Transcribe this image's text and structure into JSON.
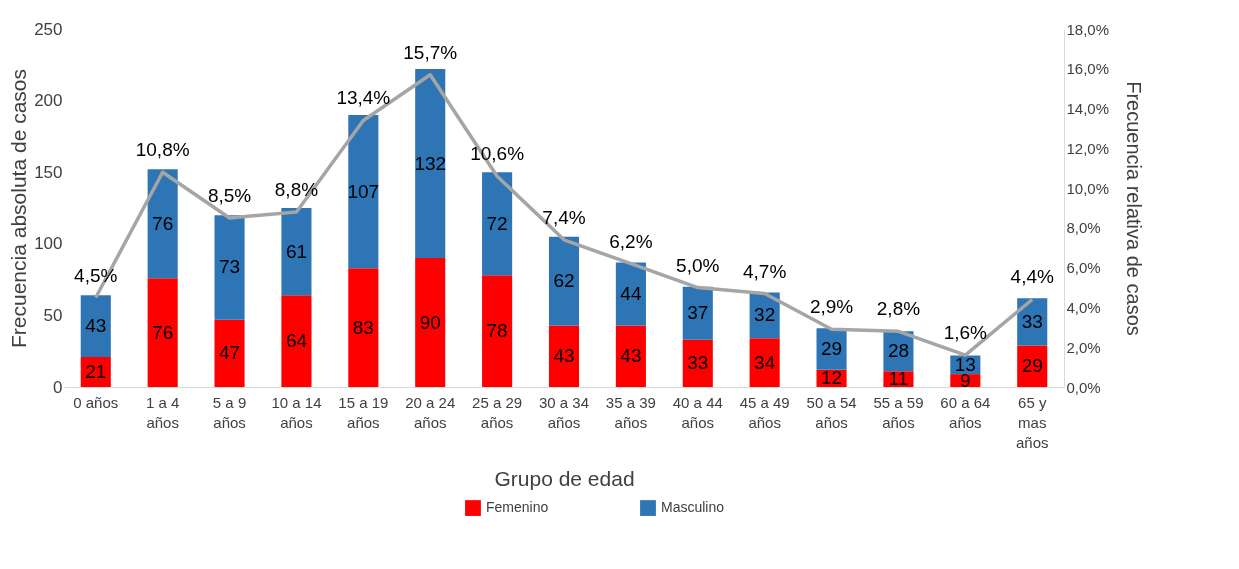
{
  "chart_data": {
    "type": "bar",
    "stacked": true,
    "xlabel": "Grupo de edad",
    "ylabel": "Frecuencia absoluta de casos",
    "y2label": "Frecuencia relativa de casos",
    "categories": [
      "0 años",
      "1 a 4 años",
      "5 a 9 años",
      "10 a 14 años",
      "15 a 19 años",
      "20 a 24 años",
      "25 a 29 años",
      "30 a 34 años",
      "35 a 39 años",
      "40 a 44 años",
      "45 a 49 años",
      "50 a 54 años",
      "55 a 59 años",
      "60 a 64 años",
      "65 y mas años"
    ],
    "series": [
      {
        "name": "Femenino",
        "color": "#ff0000",
        "values": [
          21,
          76,
          47,
          64,
          83,
          90,
          78,
          43,
          43,
          33,
          34,
          12,
          11,
          9,
          29
        ]
      },
      {
        "name": "Masculino",
        "color": "#2e75b6",
        "values": [
          43,
          76,
          73,
          61,
          107,
          132,
          72,
          62,
          44,
          37,
          32,
          29,
          28,
          13,
          33
        ]
      },
      {
        "type": "line",
        "axis": "y2",
        "color": "#a5a5a5",
        "marker": "none",
        "line_style": "solid",
        "values": [
          4.5,
          10.8,
          8.5,
          8.8,
          13.4,
          15.7,
          10.6,
          7.4,
          6.2,
          5.0,
          4.7,
          2.9,
          2.8,
          1.6,
          4.4
        ],
        "value_labels": [
          "4,5%",
          "10,8%",
          "8,5%",
          "8,8%",
          "13,4%",
          "15,7%",
          "10,6%",
          "7,4%",
          "6,2%",
          "5,0%",
          "4,7%",
          "2,9%",
          "2,8%",
          "1,6%",
          "4,4%"
        ]
      }
    ],
    "data_labels": true,
    "ylim": [
      0,
      250
    ],
    "yticks": [
      0,
      50,
      100,
      150,
      200,
      250
    ],
    "y2lim": [
      0,
      18
    ],
    "y2ticks": [
      {
        "value": 0,
        "label": "0,0%"
      },
      {
        "value": 2,
        "label": "2,0%"
      },
      {
        "value": 4,
        "label": "4,0%"
      },
      {
        "value": 6,
        "label": "6,0%"
      },
      {
        "value": 8,
        "label": "8,0%"
      },
      {
        "value": 10,
        "label": "10,0%"
      },
      {
        "value": 12,
        "label": "12,0%"
      },
      {
        "value": 14,
        "label": "14,0%"
      },
      {
        "value": 16,
        "label": "16,0%"
      },
      {
        "value": 18,
        "label": "18,0%"
      }
    ],
    "grid": false,
    "legend": "bottom"
  }
}
